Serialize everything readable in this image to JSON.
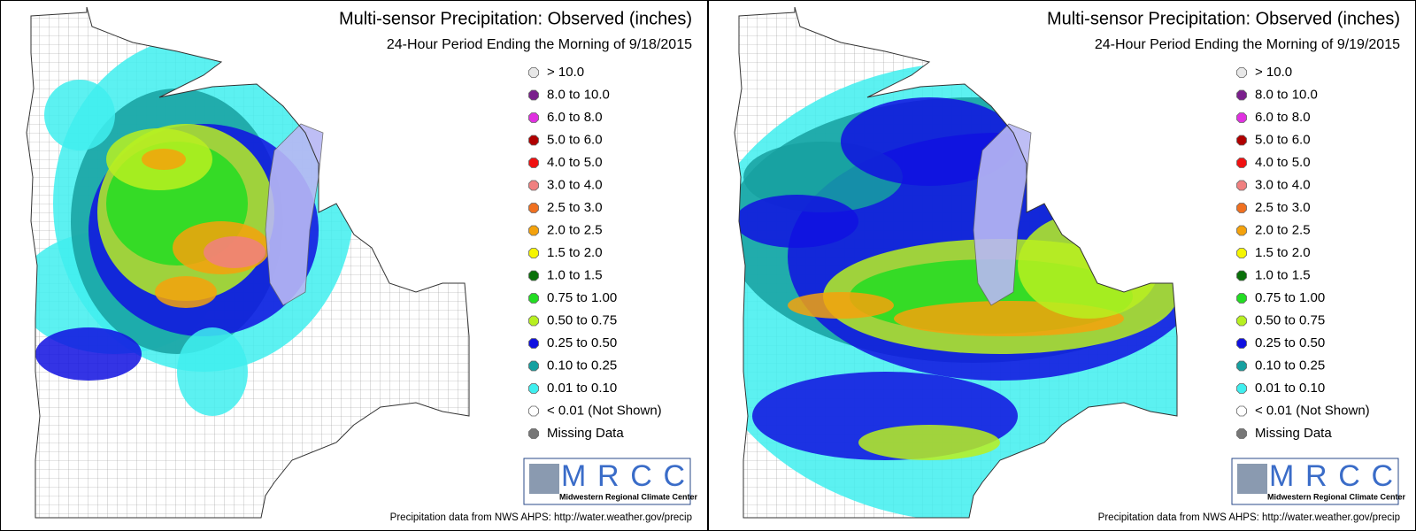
{
  "panels": [
    {
      "title": "Multi-sensor Precipitation:  Observed (inches)",
      "subtitle": "24-Hour Period Ending the Morning of 9/18/2015",
      "legend": [
        {
          "label": "> 10.0",
          "color": "#e8e8e8"
        },
        {
          "label": "8.0 to 10.0",
          "color": "#7a1f8c"
        },
        {
          "label": "6.0 to 8.0",
          "color": "#e030e0"
        },
        {
          "label": "5.0 to 6.0",
          "color": "#b00000"
        },
        {
          "label": "4.0 to 5.0",
          "color": "#f01010"
        },
        {
          "label": "3.0 to 4.0",
          "color": "#f08080"
        },
        {
          "label": "2.5 to 3.0",
          "color": "#f07020"
        },
        {
          "label": "2.0 to 2.5",
          "color": "#f4a20c"
        },
        {
          "label": "1.5 to 2.0",
          "color": "#f5f500"
        },
        {
          "label": "1.0 to 1.5",
          "color": "#0a700a"
        },
        {
          "label": "0.75 to 1.00",
          "color": "#22dd22"
        },
        {
          "label": "0.50 to 0.75",
          "color": "#b8f020"
        },
        {
          "label": "0.25 to 0.50",
          "color": "#1010e0"
        },
        {
          "label": "0.10 to 0.25",
          "color": "#16a0a0"
        },
        {
          "label": "0.01 to 0.10",
          "color": "#3fefef"
        },
        {
          "label": "< 0.01 (Not Shown)",
          "color": "#ffffff"
        },
        {
          "label": "Missing Data",
          "color": "#777777"
        }
      ],
      "logo": {
        "name": "MRCC",
        "full_name": "Midwestern Regional Climate Center"
      },
      "source": "Precipitation data from NWS AHPS: http://water.weather.gov/precip"
    },
    {
      "title": "Multi-sensor Precipitation:  Observed (inches)",
      "subtitle": "24-Hour Period Ending the Morning of 9/19/2015",
      "legend": [
        {
          "label": "> 10.0",
          "color": "#e8e8e8"
        },
        {
          "label": "8.0 to 10.0",
          "color": "#7a1f8c"
        },
        {
          "label": "6.0 to 8.0",
          "color": "#e030e0"
        },
        {
          "label": "5.0 to 6.0",
          "color": "#b00000"
        },
        {
          "label": "4.0 to 5.0",
          "color": "#f01010"
        },
        {
          "label": "3.0 to 4.0",
          "color": "#f08080"
        },
        {
          "label": "2.5 to 3.0",
          "color": "#f07020"
        },
        {
          "label": "2.0 to 2.5",
          "color": "#f4a20c"
        },
        {
          "label": "1.5 to 2.0",
          "color": "#f5f500"
        },
        {
          "label": "1.0 to 1.5",
          "color": "#0a700a"
        },
        {
          "label": "0.75 to 1.00",
          "color": "#22dd22"
        },
        {
          "label": "0.50 to 0.75",
          "color": "#b8f020"
        },
        {
          "label": "0.25 to 0.50",
          "color": "#1010e0"
        },
        {
          "label": "0.10 to 0.25",
          "color": "#16a0a0"
        },
        {
          "label": "0.01 to 0.10",
          "color": "#3fefef"
        },
        {
          "label": "< 0.01 (Not Shown)",
          "color": "#ffffff"
        },
        {
          "label": "Missing Data",
          "color": "#777777"
        }
      ],
      "logo": {
        "name": "MRCC",
        "full_name": "Midwestern Regional Climate Center"
      },
      "source": "Precipitation data from NWS AHPS: http://water.weather.gov/precip"
    }
  ]
}
